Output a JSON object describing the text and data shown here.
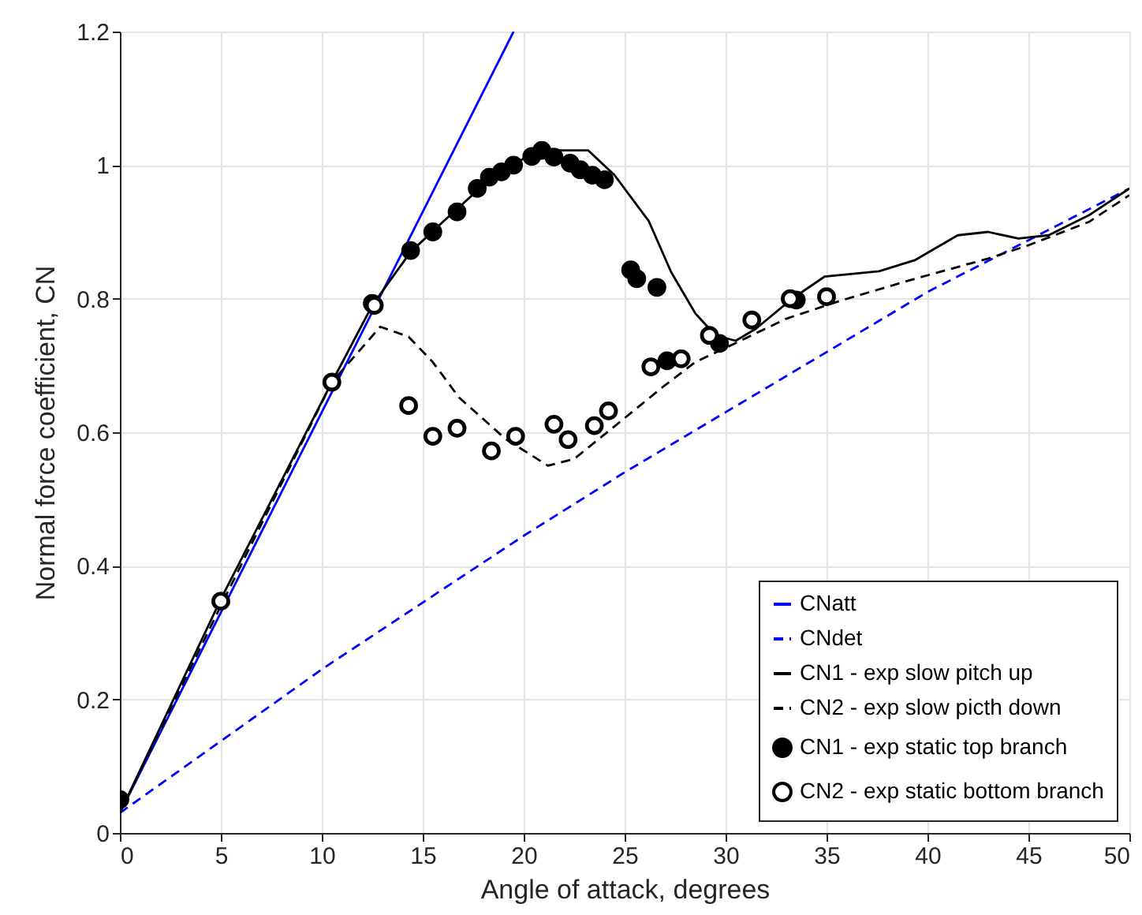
{
  "chart_data": {
    "type": "line",
    "xlabel": "Angle of attack, degrees",
    "ylabel": "Normal force coefficient, CN",
    "xlim": [
      0,
      50
    ],
    "ylim": [
      0,
      1.2
    ],
    "xticks": [
      0,
      5,
      10,
      15,
      20,
      25,
      30,
      35,
      40,
      45,
      50
    ],
    "yticks": [
      0,
      0.2,
      0.4,
      0.6,
      0.8,
      1,
      1.2
    ],
    "grid": true,
    "legend": "bottom right",
    "series": [
      {
        "name": "CNatt",
        "line_style": "solid",
        "color": "#0000ff",
        "x": [
          0,
          19.5
        ],
        "values": [
          0.03,
          1.2
        ]
      },
      {
        "name": "CNdet",
        "line_style": "dashed",
        "color": "#0000ff",
        "x": [
          0,
          10,
          20,
          25,
          30,
          40,
          50
        ],
        "values": [
          0.03,
          0.245,
          0.445,
          0.54,
          0.63,
          0.81,
          0.965
        ]
      },
      {
        "name": "CN1 - exp slow pitch up",
        "line_style": "solid",
        "color": "#000000",
        "x": [
          0,
          5,
          10.5,
          12.5,
          14.4,
          16,
          18,
          20,
          21,
          23.2,
          24.5,
          26.2,
          27.3,
          28.5,
          29.5,
          30.5,
          31.5,
          33.3,
          34.9,
          37.6,
          39.4,
          41.5,
          43,
          44.5,
          46,
          48,
          50
        ],
        "values": [
          0.03,
          0.35,
          0.675,
          0.79,
          0.87,
          0.915,
          0.97,
          1.01,
          1.022,
          1.022,
          0.985,
          0.916,
          0.84,
          0.778,
          0.745,
          0.737,
          0.755,
          0.8,
          0.833,
          0.841,
          0.858,
          0.895,
          0.9,
          0.89,
          0.895,
          0.925,
          0.965
        ]
      },
      {
        "name": "CN2 - exp slow picth down",
        "line_style": "dashed",
        "color": "#000000",
        "x": [
          0,
          5,
          10.5,
          12.9,
          14.3,
          15.5,
          16.8,
          19.1,
          21.2,
          22.5,
          24.3,
          26.9,
          28.5,
          30.6,
          33,
          35.8,
          39.4,
          43,
          45,
          48,
          50
        ],
        "values": [
          0.03,
          0.34,
          0.675,
          0.758,
          0.743,
          0.705,
          0.652,
          0.59,
          0.55,
          0.56,
          0.604,
          0.668,
          0.705,
          0.735,
          0.77,
          0.798,
          0.83,
          0.86,
          0.88,
          0.915,
          0.955
        ]
      },
      {
        "name": "CN1 - exp static top branch",
        "type": "scatter",
        "marker": "circle",
        "color": "#000000",
        "x": [
          0,
          12.5,
          14.4,
          15.5,
          16.7,
          17.7,
          18.3,
          18.9,
          19.5,
          20.4,
          20.9,
          21.5,
          22.3,
          22.8,
          23.4,
          24,
          25.3,
          25.6,
          26.6,
          27.1,
          29.7,
          33.5
        ],
        "values": [
          0.05,
          0.793,
          0.872,
          0.9,
          0.93,
          0.965,
          0.982,
          0.99,
          1.0,
          1.013,
          1.022,
          1.012,
          1.003,
          0.993,
          0.985,
          0.978,
          0.843,
          0.83,
          0.817,
          0.707,
          0.733,
          0.798
        ]
      },
      {
        "name": "CN2 - exp static bottom branch",
        "type": "scatter",
        "marker": "circle",
        "color": "#ffffff",
        "x": [
          5,
          10.5,
          12.6,
          14.3,
          15.5,
          16.7,
          18.4,
          19.6,
          21.5,
          22.2,
          23.5,
          24.2,
          26.3,
          27.8,
          29.2,
          31.3,
          33.2,
          35
        ],
        "values": [
          0.347,
          0.675,
          0.79,
          0.64,
          0.594,
          0.606,
          0.572,
          0.594,
          0.612,
          0.589,
          0.61,
          0.632,
          0.698,
          0.71,
          0.745,
          0.768,
          0.8,
          0.803
        ]
      }
    ]
  }
}
